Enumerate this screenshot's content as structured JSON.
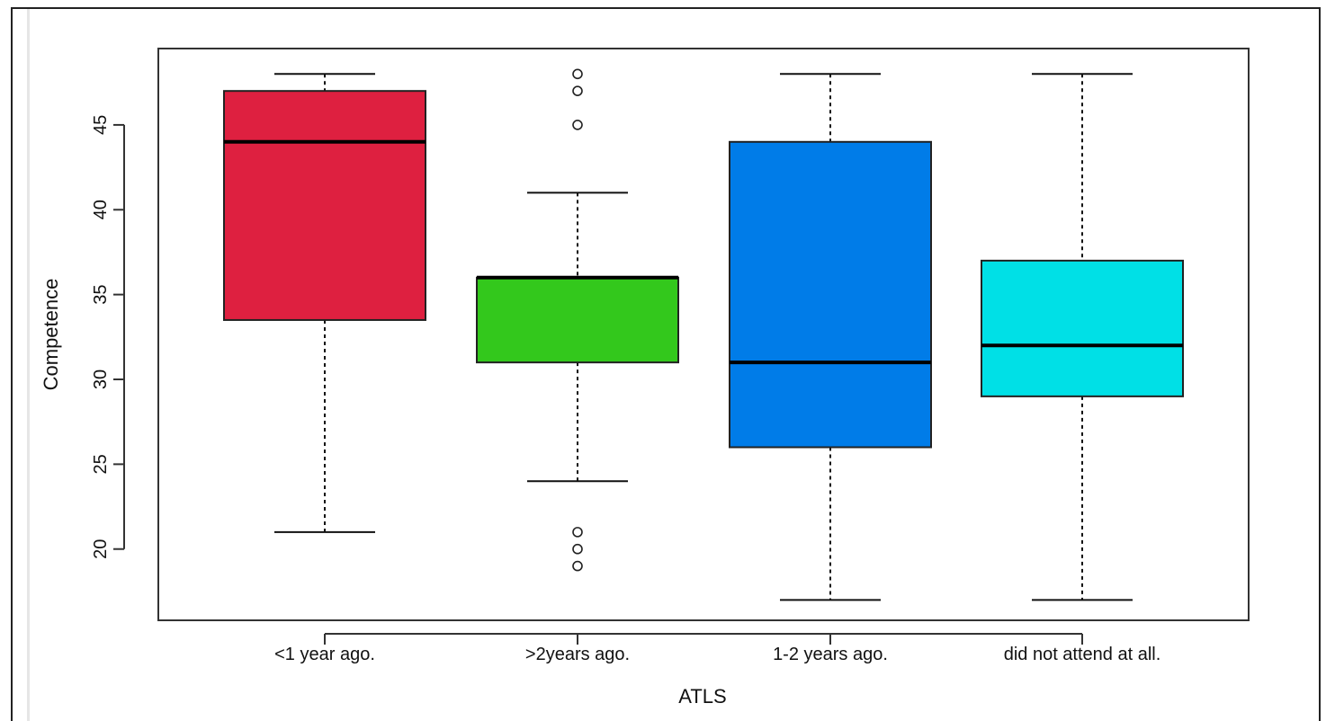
{
  "chart_data": {
    "type": "boxplot",
    "title": "",
    "xlabel": "ATLS",
    "ylabel": "Competence",
    "ylim": [
      15.8,
      49.5
    ],
    "yticks": [
      20,
      25,
      30,
      35,
      40,
      45
    ],
    "grid": false,
    "legend": "none",
    "categories": [
      "<1 year ago.",
      ">2years ago.",
      "1-2 years ago.",
      "did not attend at all."
    ],
    "boxes": [
      {
        "category": "<1 year ago.",
        "color": "#DE2040",
        "whisker_low": 21,
        "q1": 33.5,
        "median": 44,
        "q3": 47,
        "whisker_high": 48,
        "outliers": []
      },
      {
        "category": ">2years ago.",
        "color": "#33C81C",
        "whisker_low": 24,
        "q1": 31,
        "median": 36,
        "q3": 36,
        "whisker_high": 41,
        "outliers": [
          48,
          47,
          45,
          21,
          20,
          19
        ]
      },
      {
        "category": "1-2 years ago.",
        "color": "#007CE8",
        "whisker_low": 17,
        "q1": 26,
        "median": 31,
        "q3": 44,
        "whisker_high": 48,
        "outliers": []
      },
      {
        "category": "did not attend at all.",
        "color": "#00E0E6",
        "whisker_low": 17,
        "q1": 29,
        "median": 32,
        "q3": 37,
        "whisker_high": 48,
        "outliers": []
      }
    ]
  }
}
